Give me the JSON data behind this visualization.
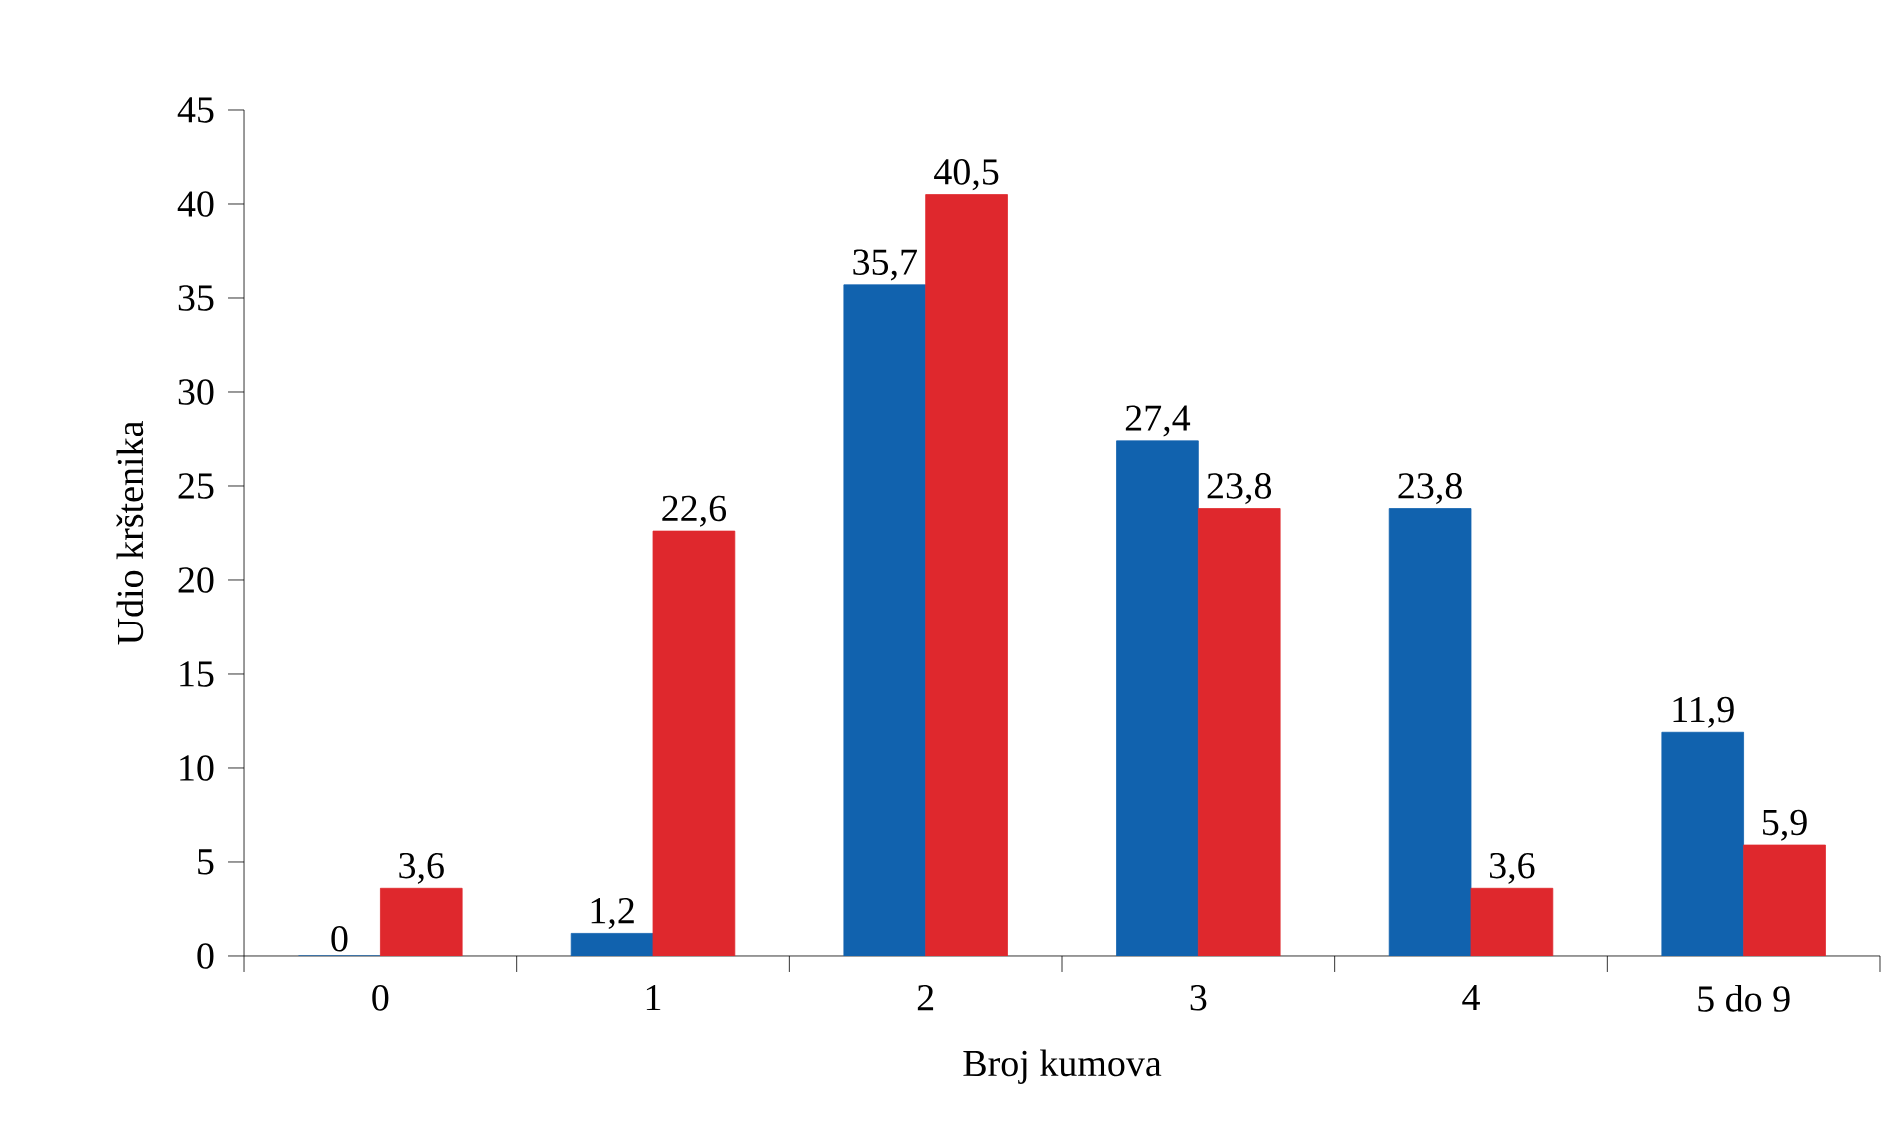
{
  "chart_data": {
    "type": "bar",
    "xlabel": "Broj kumova",
    "ylabel": "Udio krštenika",
    "categories": [
      "0",
      "1",
      "2",
      "3",
      "4",
      "5 do 9"
    ],
    "series": [
      {
        "color": "#1162ae",
        "values": [
          0,
          1.2,
          35.7,
          27.4,
          23.8,
          11.9
        ],
        "value_labels": [
          "0",
          "1,2",
          "35,7",
          "27,4",
          "23,8",
          "11,9"
        ]
      },
      {
        "color": "#df282d",
        "values": [
          3.6,
          22.6,
          40.5,
          23.8,
          3.6,
          5.9
        ],
        "value_labels": [
          "3,6",
          "22,6",
          "40,5",
          "23,8",
          "3,6",
          "5,9"
        ]
      }
    ],
    "ylim": [
      0,
      45
    ],
    "yticks": [
      0,
      5,
      10,
      15,
      20,
      25,
      30,
      35,
      40,
      45
    ]
  }
}
